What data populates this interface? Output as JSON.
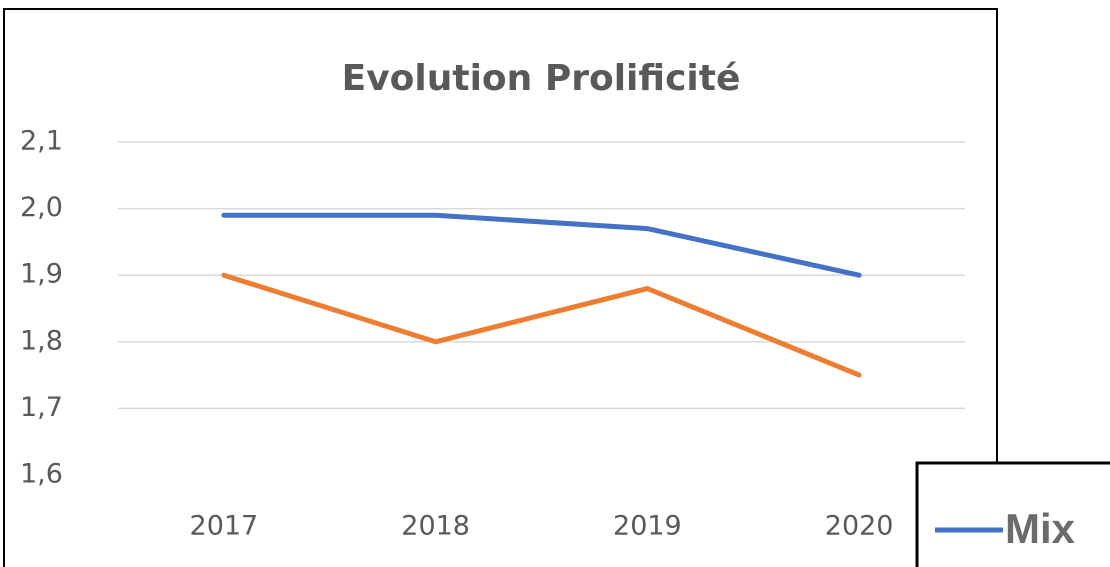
{
  "chart_data": {
    "type": "line",
    "title": "Evolution Prolificité",
    "categories": [
      "2017",
      "2018",
      "2019",
      "2020"
    ],
    "series": [
      {
        "name": "Mix",
        "color": "#4472c4",
        "values": [
          1.99,
          1.99,
          1.97,
          1.9
        ]
      },
      {
        "color": "#ed7d31",
        "values": [
          1.9,
          1.8,
          1.88,
          1.75
        ]
      }
    ],
    "ylim": [
      1.6,
      2.1
    ],
    "yticks": [
      {
        "value": 1.6,
        "label": "1,6"
      },
      {
        "value": 1.7,
        "label": "1,7"
      },
      {
        "value": 1.8,
        "label": "1,8"
      },
      {
        "value": 1.9,
        "label": "1,9"
      },
      {
        "value": 2.0,
        "label": "2,0"
      },
      {
        "value": 2.1,
        "label": "2,1"
      }
    ],
    "grid": true
  }
}
